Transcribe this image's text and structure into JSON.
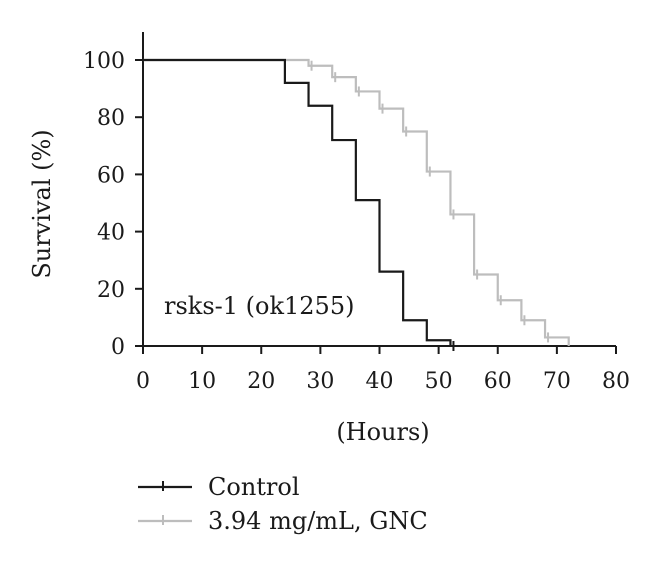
{
  "chart_data": {
    "type": "line",
    "step": true,
    "title": "",
    "xlabel": "(Hours)",
    "ylabel": "Survival (%)",
    "xlim": [
      0,
      80
    ],
    "ylim": [
      0,
      100
    ],
    "xticks": [
      0,
      10,
      20,
      30,
      40,
      50,
      60,
      70,
      80
    ],
    "yticks": [
      0,
      20,
      40,
      60,
      80,
      100
    ],
    "grid": false,
    "legend_position": "bottom",
    "annotation": "rsks-1 (ok1255)",
    "series": [
      {
        "name": "Control",
        "color": "#1a1a1a",
        "x": [
          0,
          24,
          28,
          32,
          36,
          40,
          44,
          48,
          52
        ],
        "y": [
          100,
          92,
          84,
          72,
          51,
          26,
          9,
          2,
          0
        ],
        "censor_x": [
          52
        ]
      },
      {
        "name": "3.94 mg/mL, GNC",
        "color": "#bdbdbd",
        "x": [
          0,
          24,
          28,
          32,
          36,
          40,
          44,
          48,
          52,
          56,
          60,
          64,
          68,
          72
        ],
        "y": [
          100,
          100,
          98,
          94,
          89,
          83,
          75,
          61,
          46,
          25,
          16,
          9,
          3,
          0
        ],
        "censor_x": [
          28,
          32,
          36,
          40,
          44,
          48,
          52,
          56,
          60,
          64,
          68
        ]
      }
    ]
  }
}
